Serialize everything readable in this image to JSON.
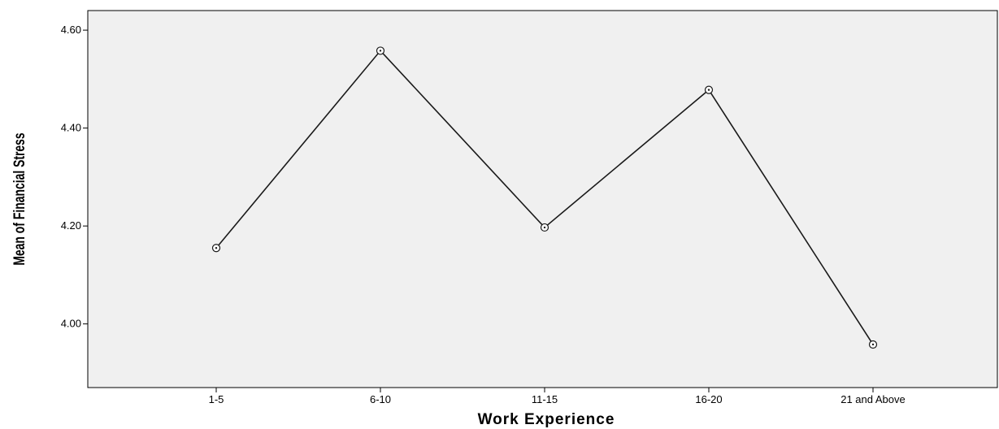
{
  "chart_data": {
    "type": "line",
    "title": "",
    "xlabel": "Work Experience",
    "ylabel": "Mean of Financial Stress",
    "categories": [
      "1-5",
      "6-10",
      "11-15",
      "16-20",
      "21 and Above"
    ],
    "series": [
      {
        "values": [
          4.155,
          4.558,
          4.197,
          4.478,
          3.958
        ]
      }
    ],
    "ylim": [
      3.87,
      4.64
    ],
    "yticks": [
      4.0,
      4.2,
      4.4,
      4.6
    ],
    "ytick_labels": [
      "4.00",
      "4.20",
      "4.40",
      "4.60"
    ],
    "grid": false,
    "legend": "none",
    "colors": {
      "plot_background": "#f0f0f0",
      "line": "#1a1a1a",
      "marker_fill": "#ffffff",
      "axis": "#000000"
    }
  }
}
